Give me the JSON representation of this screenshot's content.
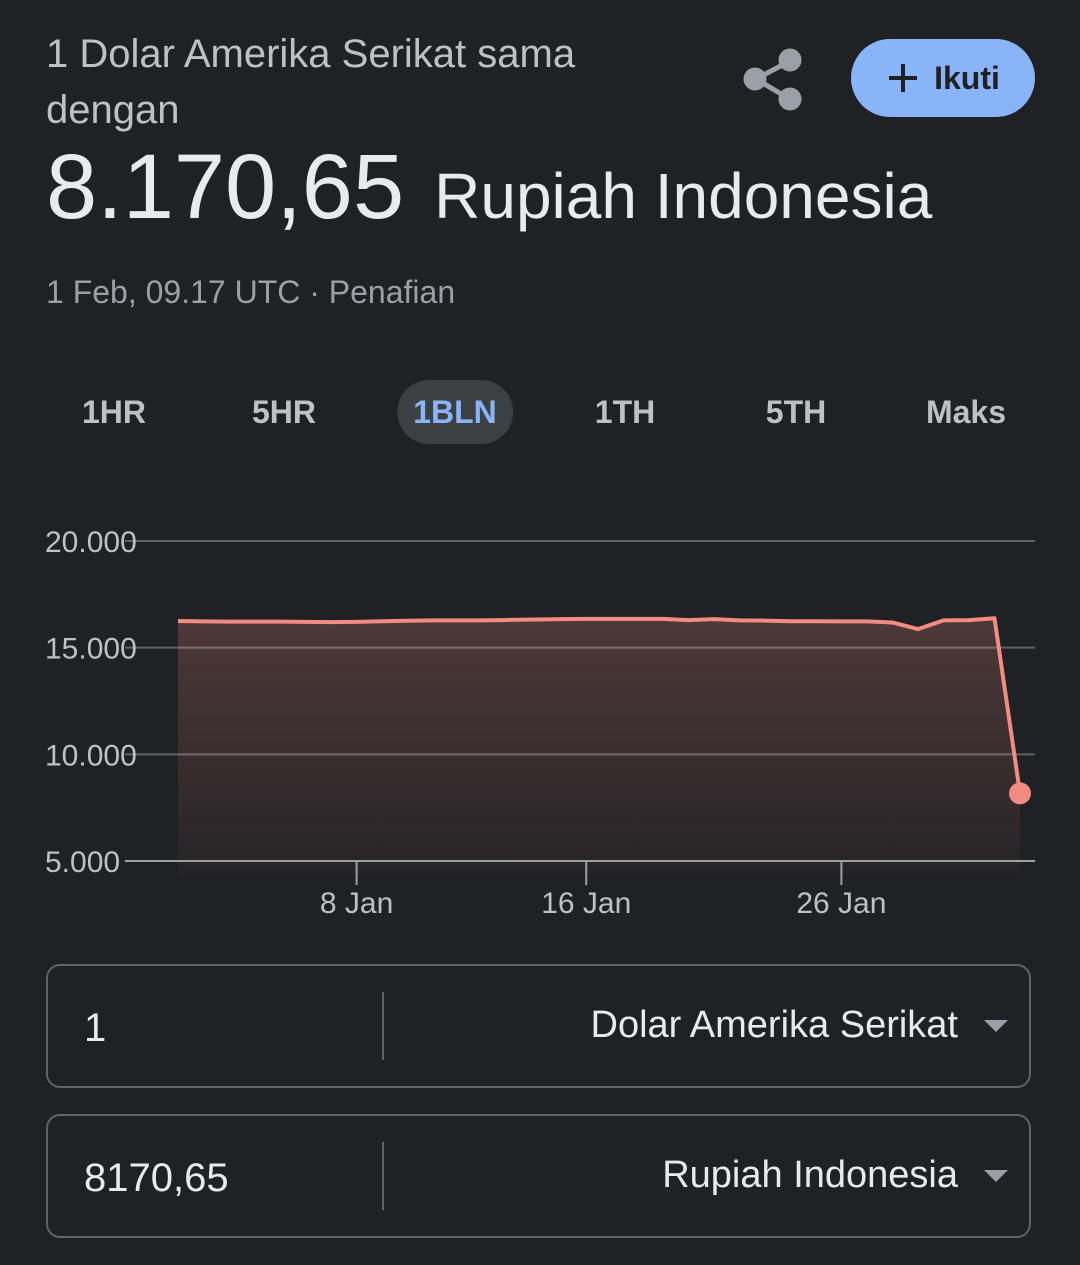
{
  "header": {
    "title": "1 Dolar Amerika Serikat sama dengan",
    "value": "8.170,65",
    "unit": "Rupiah Indonesia",
    "timestamp": "1 Feb, 09.17 UTC · Penafian",
    "follow": "Ikuti"
  },
  "tabs": [
    "1HR",
    "5HR",
    "1BLN",
    "1TH",
    "5TH",
    "Maks"
  ],
  "selected_tab": 2,
  "chart_data": {
    "type": "area",
    "color": "#f28b82",
    "categories": [
      null,
      null,
      null,
      null,
      null,
      null,
      null,
      "8 Jan",
      null,
      null,
      null,
      null,
      null,
      null,
      null,
      null,
      "16 Jan",
      null,
      null,
      null,
      null,
      null,
      null,
      null,
      null,
      null,
      "26 Jan",
      null,
      null,
      null,
      null,
      null,
      null,
      null
    ],
    "values": [
      16250,
      16230,
      16220,
      16220,
      16220,
      16210,
      16200,
      16210,
      16240,
      16260,
      16280,
      16280,
      16280,
      16300,
      16320,
      16340,
      16350,
      16350,
      16350,
      16350,
      16290,
      16340,
      16280,
      16270,
      16240,
      16240,
      16230,
      16230,
      16180,
      15870,
      16280,
      16290,
      16380,
      8170.65
    ],
    "ylim": [
      5000,
      20000
    ],
    "yticks": [
      {
        "value": 5000,
        "label": "5.000"
      },
      {
        "value": 10000,
        "label": "10.000"
      },
      {
        "value": 15000,
        "label": "15.000"
      },
      {
        "value": 20000,
        "label": "20.000"
      }
    ],
    "grid": true
  },
  "converter": {
    "rows": [
      {
        "amount": "1",
        "currency": "Dolar Amerika Serikat"
      },
      {
        "amount": "8170,65",
        "currency": "Rupiah Indonesia"
      }
    ]
  }
}
